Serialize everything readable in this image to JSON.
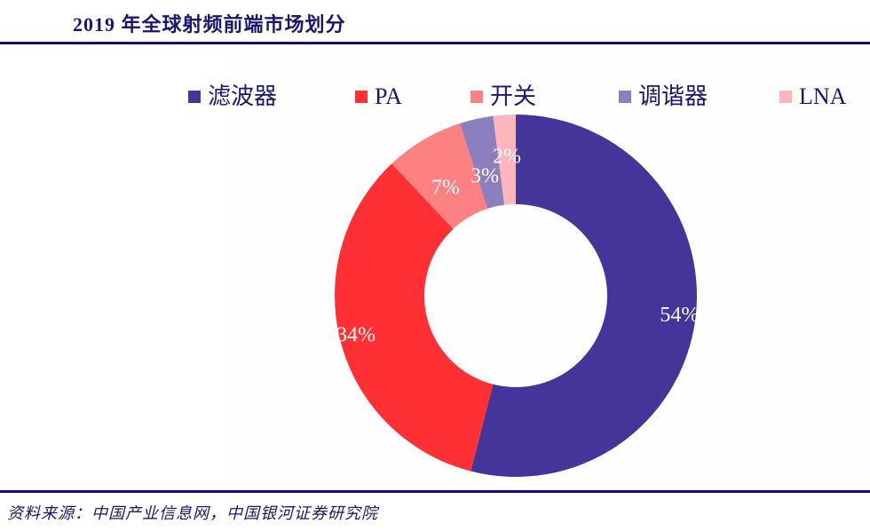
{
  "header": {
    "title": "2019 年全球射频前端市场划分"
  },
  "footer": {
    "source": "资料来源：中国产业信息网，中国银河证券研究院"
  },
  "legend": [
    {
      "label": "滤波器",
      "color": "#43359a"
    },
    {
      "label": "PA",
      "color": "#fe3034"
    },
    {
      "label": "开关",
      "color": "#fd8180"
    },
    {
      "label": "调谐器",
      "color": "#8b80bd"
    },
    {
      "label": "LNA",
      "color": "#feb6bc"
    }
  ],
  "chart_data": {
    "type": "pie",
    "subtype": "donut",
    "title": "2019 年全球射频前端市场划分",
    "categories": [
      "滤波器",
      "PA",
      "开关",
      "调谐器",
      "LNA"
    ],
    "values": [
      54,
      34,
      7,
      3,
      2
    ],
    "unit": "%",
    "data_labels": [
      "54%",
      "34%",
      "7%",
      "3%",
      "2%"
    ],
    "colors": [
      "#43359a",
      "#fe3034",
      "#fd8180",
      "#8b80bd",
      "#feb6bc"
    ],
    "start_angle": "12 o'clock, clockwise",
    "legend_position": "top",
    "source": "资料来源：中国产业信息网，中国银河证券研究院"
  }
}
